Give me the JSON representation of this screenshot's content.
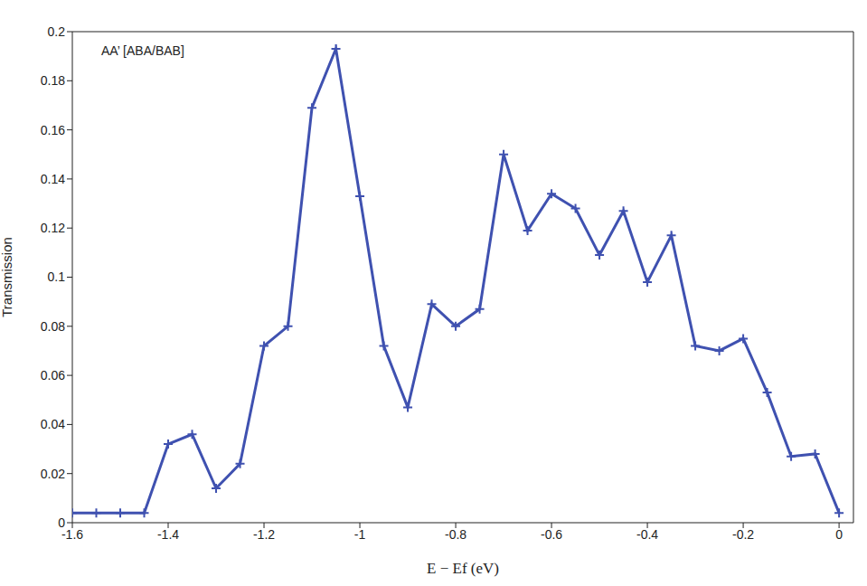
{
  "chart_data": {
    "type": "line",
    "annotation": "AA’ [ABA/BAB]",
    "xlabel": "E − Ef (eV)",
    "ylabel": "Transmission",
    "x": [
      -1.6,
      -1.55,
      -1.5,
      -1.45,
      -1.4,
      -1.35,
      -1.3,
      -1.25,
      -1.2,
      -1.15,
      -1.1,
      -1.05,
      -1.0,
      -0.95,
      -0.9,
      -0.85,
      -0.8,
      -0.75,
      -0.7,
      -0.65,
      -0.6,
      -0.55,
      -0.5,
      -0.45,
      -0.4,
      -0.35,
      -0.3,
      -0.25,
      -0.2,
      -0.15,
      -0.1,
      -0.05,
      0
    ],
    "values": [
      0.004,
      0.004,
      0.004,
      0.004,
      0.032,
      0.036,
      0.014,
      0.024,
      0.072,
      0.08,
      0.169,
      0.193,
      0.133,
      0.072,
      0.047,
      0.089,
      0.08,
      0.087,
      0.15,
      0.119,
      0.134,
      0.128,
      0.109,
      0.127,
      0.098,
      0.117,
      0.072,
      0.07,
      0.075,
      0.053,
      0.027,
      0.028,
      0.004
    ],
    "color": "#3f51b0",
    "marker": "plus",
    "xlim": [
      -1.6,
      0.03
    ],
    "ylim": [
      0,
      0.2
    ],
    "xticks": [
      -1.6,
      -1.4,
      -1.2,
      -1,
      -0.8,
      -0.6,
      -0.4,
      -0.2,
      0
    ],
    "yticks": [
      0,
      0.02,
      0.04,
      0.06,
      0.08,
      0.1,
      0.12,
      0.14,
      0.16,
      0.18,
      0.2
    ],
    "grid": false
  }
}
